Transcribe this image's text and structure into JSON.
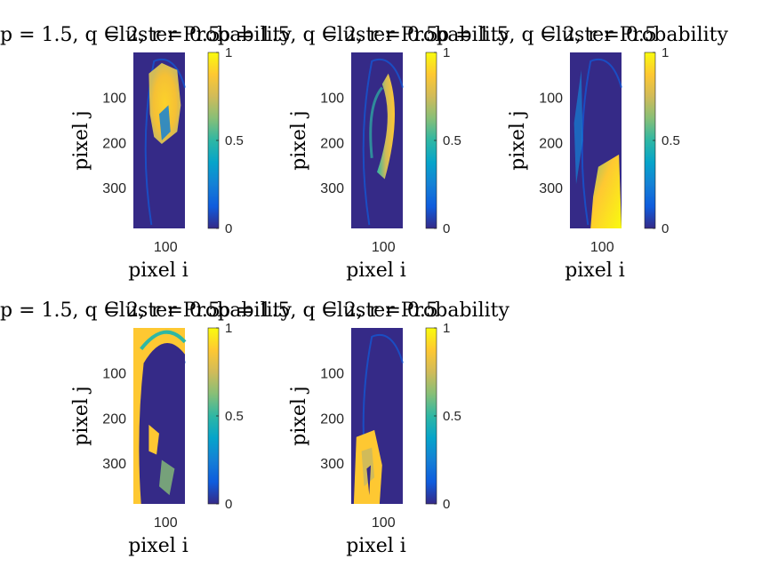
{
  "colors": {
    "parula": [
      "#352a87",
      "#0f5cdd",
      "#1481d6",
      "#06a4ca",
      "#2eb7a4",
      "#87bf77",
      "#d1bb59",
      "#fec832",
      "#f9fb0e"
    ],
    "background": "#352a87",
    "axis": "#262626"
  },
  "chart_data": [
    {
      "type": "heatmap",
      "title": "p = 1.5, q = 2, r = 0.5",
      "title_overlay": "Cluster Probability",
      "xlabel": "pixel i",
      "ylabel": "pixel j",
      "xticks": [
        100
      ],
      "yticks": [
        100,
        200,
        300
      ],
      "xlim": [
        1,
        120
      ],
      "ylim": [
        1,
        390
      ],
      "colorbar": {
        "ticks": [
          0,
          0.5,
          1
        ],
        "labels": [
          "0",
          "0.5",
          "1"
        ],
        "range": [
          0,
          1
        ]
      },
      "pattern": "large high-probability blob in upper-middle head region"
    },
    {
      "type": "heatmap",
      "title": "p = 1.5, q = 2, r = 0.5",
      "title_overlay": "Cluster Probability",
      "xlabel": "pixel i",
      "ylabel": "pixel j",
      "xticks": [
        100
      ],
      "yticks": [
        100,
        200,
        300
      ],
      "xlim": [
        1,
        120
      ],
      "ylim": [
        1,
        390
      ],
      "colorbar": {
        "ticks": [
          0,
          0.5,
          1
        ],
        "labels": [
          "0",
          "0.5",
          "1"
        ],
        "range": [
          0,
          1
        ]
      },
      "pattern": "crescent of high probability along right-center"
    },
    {
      "type": "heatmap",
      "title": "p = 1.5, q = 2, r = 0.5",
      "title_overlay": "Cluster Probability",
      "xlabel": "pixel i",
      "ylabel": "pixel j",
      "xticks": [
        100
      ],
      "yticks": [
        100,
        200,
        300
      ],
      "xlim": [
        1,
        120
      ],
      "ylim": [
        1,
        390
      ],
      "colorbar": {
        "ticks": [
          0,
          0.5,
          1
        ],
        "labels": [
          "0",
          "0.5",
          "1"
        ],
        "range": [
          0,
          1
        ]
      },
      "pattern": "high probability region in lower-right"
    },
    {
      "type": "heatmap",
      "title": "p = 1.5, q = 2, r = 0.5",
      "title_overlay": "Cluster Probability",
      "xlabel": "pixel i",
      "ylabel": "pixel j",
      "xticks": [
        100
      ],
      "yticks": [
        100,
        200,
        300
      ],
      "xlim": [
        1,
        120
      ],
      "ylim": [
        1,
        390
      ],
      "colorbar": {
        "ticks": [
          0,
          0.5,
          1
        ],
        "labels": [
          "0",
          "0.5",
          "1"
        ],
        "range": [
          0,
          1
        ]
      },
      "pattern": "background high probability with low-probability head tissue"
    },
    {
      "type": "heatmap",
      "title": "p = 1.5, q = 2, r = 0.5",
      "title_overlay": "Cluster Probability",
      "xlabel": "pixel i",
      "ylabel": "pixel j",
      "xticks": [
        100
      ],
      "yticks": [
        100,
        200,
        300
      ],
      "xlim": [
        1,
        120
      ],
      "ylim": [
        1,
        390
      ],
      "colorbar": {
        "ticks": [
          0,
          0.5,
          1
        ],
        "labels": [
          "0",
          "0.5",
          "1"
        ],
        "range": [
          0,
          1
        ]
      },
      "pattern": "high probability in lower-left neck region"
    }
  ]
}
